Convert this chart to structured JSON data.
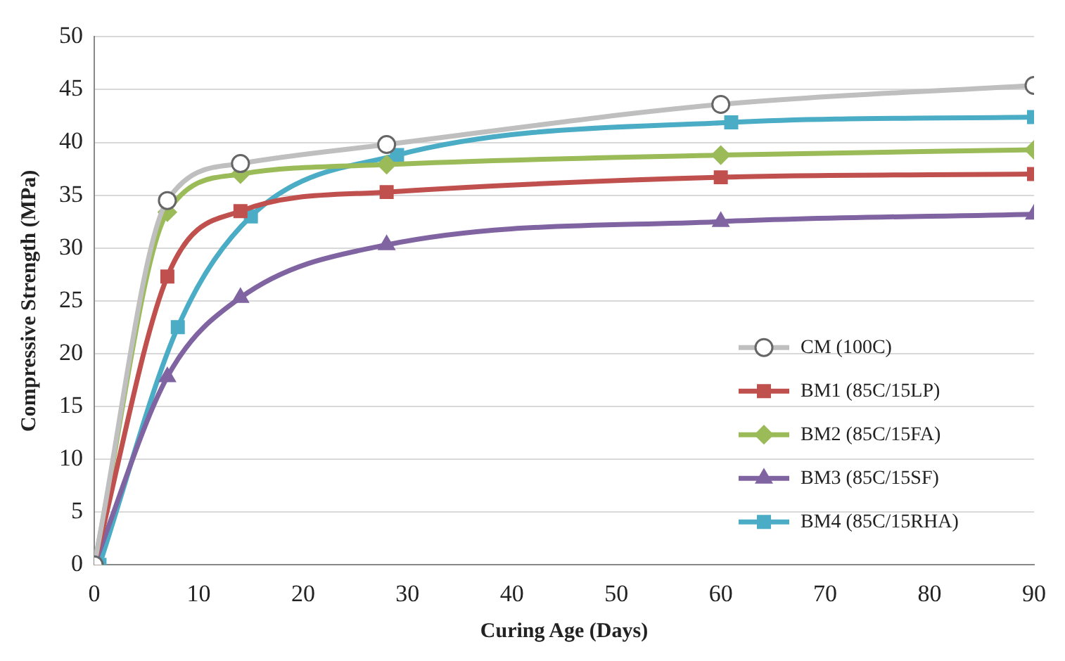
{
  "chart_data": {
    "type": "line",
    "xlabel": "Curing Age (Days)",
    "ylabel": "Compressive Strength (MPa)",
    "x": [
      0,
      7,
      14,
      28,
      60,
      90
    ],
    "series": [
      {
        "name": "CM (100C)",
        "color": "#bfbfbf",
        "marker": "circle",
        "values": [
          0,
          34.5,
          38,
          39.8,
          43.6,
          45.4
        ]
      },
      {
        "name": "BM1 (85C/15LP)",
        "color": "#c0504d",
        "marker": "square",
        "values": [
          0,
          27.3,
          33.5,
          35.3,
          36.7,
          37
        ]
      },
      {
        "name": "BM2 (85C/15FA)",
        "color": "#9bbb59",
        "marker": "diamond",
        "values": [
          0,
          33.4,
          37,
          37.9,
          38.8,
          39.3
        ]
      },
      {
        "name": "BM3 (85C/15SF)",
        "color": "#8064a2",
        "marker": "triangle",
        "values": [
          0,
          17.8,
          25.3,
          30.3,
          32.5,
          33.2
        ]
      },
      {
        "name": "BM4 (85C/15RHA)",
        "color": "#4bacc6",
        "marker": "square",
        "x": [
          0.5,
          8,
          15,
          29,
          61,
          90
        ],
        "values": [
          0,
          22.5,
          33,
          38.8,
          41.9,
          42.4
        ]
      }
    ],
    "xlim": [
      0,
      90
    ],
    "xticks": [
      0,
      10,
      20,
      30,
      40,
      50,
      60,
      70,
      80,
      90
    ],
    "ylim": [
      0,
      50
    ],
    "yticks": [
      0,
      5,
      10,
      15,
      20,
      25,
      30,
      35,
      40,
      45,
      50
    ],
    "grid": "y",
    "legend": "bottom right"
  }
}
